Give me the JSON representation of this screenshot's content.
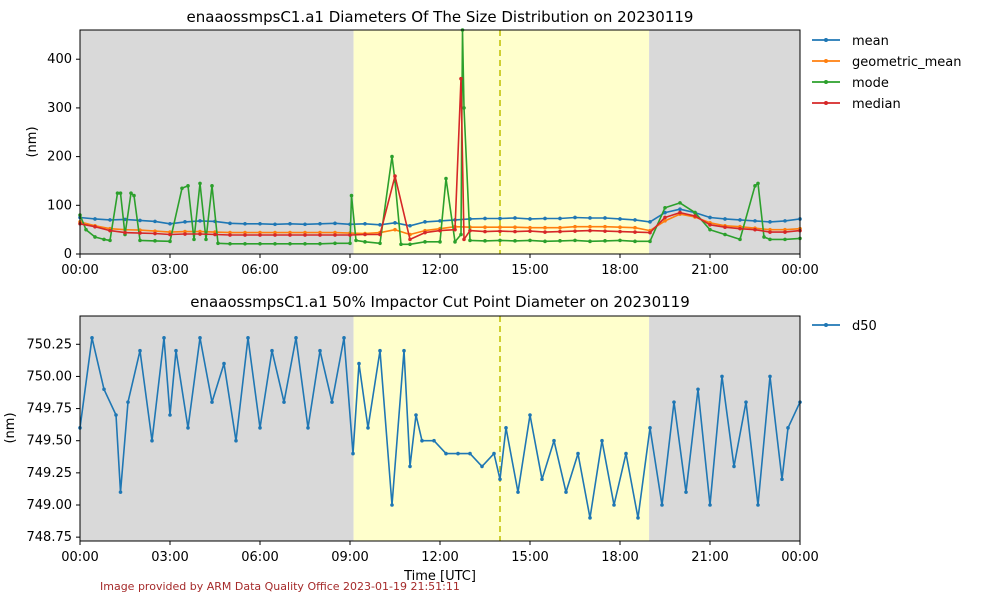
{
  "chart_data": [
    {
      "type": "line",
      "title": "enaaossmpsC1.a1 Diameters Of The Size Distribution on 20230119",
      "xlabel": "",
      "ylabel": "(nm)",
      "xticks": [
        "00:00",
        "03:00",
        "06:00",
        "09:00",
        "12:00",
        "15:00",
        "18:00",
        "21:00",
        "00:00"
      ],
      "yticks": [
        0,
        100,
        200,
        300,
        400
      ],
      "xlim_hours": [
        0,
        24
      ],
      "ylim": [
        0,
        460
      ],
      "legend_position": "outside-right",
      "shaded_regions": [
        {
          "start_hour": 0,
          "end_hour": 9.12,
          "color": "#d9d9d9"
        },
        {
          "start_hour": 9.12,
          "end_hour": 18.97,
          "color": "#ffffcc"
        },
        {
          "start_hour": 18.97,
          "end_hour": 24,
          "color": "#d9d9d9"
        }
      ],
      "marker_line_hour": 14.0,
      "marker_line_color": "#bfbf00",
      "series": [
        {
          "name": "mean",
          "color": "#1f77b4",
          "x": [
            0,
            0.5,
            1,
            1.5,
            2,
            2.5,
            3,
            3.5,
            4,
            4.5,
            5,
            5.5,
            6,
            6.5,
            7,
            7.5,
            8,
            8.5,
            9,
            9.5,
            10,
            10.5,
            11,
            11.5,
            12,
            12.5,
            13,
            13.5,
            14,
            14.5,
            15,
            15.5,
            16,
            16.5,
            17,
            17.5,
            18,
            18.5,
            19,
            19.5,
            20,
            20.5,
            21,
            21.5,
            22,
            22.5,
            23,
            23.5,
            24
          ],
          "y": [
            75,
            72,
            70,
            71,
            69,
            67,
            62,
            66,
            68,
            67,
            63,
            62,
            62,
            61,
            62,
            61,
            62,
            63,
            61,
            62,
            60,
            64,
            58,
            66,
            68,
            70,
            72,
            73,
            73,
            74,
            72,
            73,
            73,
            75,
            74,
            74,
            72,
            70,
            66,
            85,
            92,
            85,
            75,
            72,
            70,
            68,
            66,
            68,
            72
          ]
        },
        {
          "name": "geometric_mean",
          "color": "#ff7f0e",
          "x": [
            0,
            0.5,
            1,
            1.5,
            2,
            2.5,
            3,
            3.5,
            4,
            4.5,
            5,
            5.5,
            6,
            6.5,
            7,
            7.5,
            8,
            8.5,
            9,
            9.5,
            10,
            10.5,
            11,
            11.5,
            12,
            12.5,
            13,
            13.5,
            14,
            14.5,
            15,
            15.5,
            16,
            16.5,
            17,
            17.5,
            18,
            18.5,
            19,
            19.5,
            20,
            20.5,
            21,
            21.5,
            22,
            22.5,
            23,
            23.5,
            24
          ],
          "y": [
            66,
            58,
            52,
            50,
            49,
            47,
            45,
            46,
            46,
            45,
            44,
            44,
            44,
            44,
            44,
            44,
            44,
            44,
            43,
            42,
            44,
            50,
            40,
            48,
            52,
            56,
            55,
            55,
            55,
            55,
            54,
            54,
            54,
            56,
            56,
            56,
            55,
            54,
            48,
            68,
            82,
            76,
            64,
            58,
            56,
            53,
            50,
            50,
            52
          ]
        },
        {
          "name": "mode",
          "color": "#2ca02c",
          "x": [
            0,
            0.2,
            0.5,
            0.8,
            1,
            1.25,
            1.35,
            1.5,
            1.7,
            1.8,
            2,
            2.5,
            3,
            3.4,
            3.6,
            3.8,
            4,
            4.2,
            4.4,
            4.6,
            5,
            5.5,
            6,
            6.5,
            7,
            7.5,
            8,
            8.5,
            9,
            9.05,
            9.2,
            9.5,
            10,
            10.4,
            10.5,
            10.7,
            11,
            11.5,
            12,
            12.2,
            12.5,
            12.7,
            12.75,
            12.8,
            13,
            13.5,
            14,
            14.5,
            15,
            15.5,
            16,
            16.5,
            17,
            17.5,
            18,
            18.5,
            19,
            19.5,
            20,
            20.5,
            21,
            21.5,
            22,
            22.5,
            22.6,
            22.8,
            23,
            23.5,
            24
          ],
          "y": [
            80,
            50,
            35,
            30,
            28,
            125,
            125,
            40,
            125,
            120,
            28,
            27,
            26,
            135,
            140,
            30,
            145,
            30,
            140,
            22,
            21,
            21,
            21,
            21,
            21,
            21,
            21,
            22,
            22,
            120,
            28,
            25,
            22,
            200,
            150,
            20,
            20,
            25,
            25,
            155,
            25,
            40,
            460,
            300,
            28,
            27,
            28,
            27,
            28,
            26,
            27,
            28,
            26,
            27,
            28,
            26,
            26,
            95,
            105,
            85,
            50,
            40,
            30,
            140,
            145,
            35,
            30,
            30,
            32
          ]
        },
        {
          "name": "median",
          "color": "#d62728",
          "x": [
            0,
            0.5,
            1,
            1.5,
            2,
            2.5,
            3,
            3.5,
            4,
            4.5,
            5,
            5.5,
            6,
            6.5,
            7,
            7.5,
            8,
            8.5,
            9,
            9.5,
            10,
            10.5,
            11,
            11.5,
            12,
            12.5,
            12.7,
            12.8,
            13,
            13.5,
            14,
            14.5,
            15,
            15.5,
            16,
            16.5,
            17,
            17.5,
            18,
            18.5,
            19,
            19.5,
            20,
            20.5,
            21,
            21.5,
            22,
            22.5,
            23,
            23.5,
            24
          ],
          "y": [
            62,
            56,
            48,
            44,
            43,
            42,
            40,
            41,
            41,
            40,
            39,
            39,
            39,
            39,
            39,
            39,
            39,
            39,
            39,
            40,
            40,
            160,
            30,
            44,
            48,
            50,
            360,
            30,
            48,
            46,
            47,
            46,
            47,
            45,
            46,
            47,
            48,
            47,
            46,
            45,
            44,
            75,
            85,
            78,
            60,
            55,
            52,
            50,
            45,
            45,
            48
          ]
        }
      ]
    },
    {
      "type": "line",
      "title": "enaaossmpsC1.a1 50% Impactor Cut Point Diameter on 20230119",
      "xlabel": "Time [UTC]",
      "ylabel": "(nm)",
      "xticks": [
        "00:00",
        "03:00",
        "06:00",
        "09:00",
        "12:00",
        "15:00",
        "18:00",
        "21:00",
        "00:00"
      ],
      "yticks": [
        "748.75",
        "749.00",
        "749.25",
        "749.50",
        "749.75",
        "750.00",
        "750.25"
      ],
      "xlim_hours": [
        0,
        24
      ],
      "ylim": [
        748.72,
        750.47
      ],
      "legend_position": "outside-right",
      "shaded_regions": [
        {
          "start_hour": 0,
          "end_hour": 9.12,
          "color": "#d9d9d9"
        },
        {
          "start_hour": 9.12,
          "end_hour": 18.97,
          "color": "#ffffcc"
        },
        {
          "start_hour": 18.97,
          "end_hour": 24,
          "color": "#d9d9d9"
        }
      ],
      "marker_line_hour": 14.0,
      "marker_line_color": "#bfbf00",
      "series": [
        {
          "name": "d50",
          "color": "#1f77b4",
          "x": [
            0,
            0.4,
            0.8,
            1.2,
            1.35,
            1.6,
            2,
            2.4,
            2.8,
            3.0,
            3.2,
            3.6,
            4,
            4.4,
            4.8,
            5.2,
            5.6,
            6,
            6.4,
            6.8,
            7.2,
            7.6,
            8,
            8.4,
            8.8,
            9.1,
            9.3,
            9.6,
            10,
            10.4,
            10.8,
            11,
            11.2,
            11.4,
            11.8,
            12.2,
            12.6,
            13,
            13.4,
            13.8,
            14,
            14.2,
            14.6,
            15,
            15.4,
            15.8,
            16.2,
            16.6,
            17,
            17.4,
            17.8,
            18.2,
            18.6,
            19,
            19.4,
            19.8,
            20.2,
            20.6,
            21,
            21.4,
            21.8,
            22.2,
            22.6,
            23,
            23.4,
            23.6,
            24
          ],
          "y": [
            749.6,
            750.3,
            749.9,
            749.7,
            749.1,
            749.8,
            750.2,
            749.5,
            750.3,
            749.7,
            750.2,
            749.6,
            750.3,
            749.8,
            750.1,
            749.5,
            750.3,
            749.6,
            750.2,
            749.8,
            750.3,
            749.6,
            750.2,
            749.8,
            750.3,
            749.4,
            750.1,
            749.6,
            750.2,
            749.0,
            750.2,
            749.3,
            749.7,
            749.5,
            749.5,
            749.4,
            749.4,
            749.4,
            749.3,
            749.4,
            749.2,
            749.6,
            749.1,
            749.7,
            749.2,
            749.5,
            749.1,
            749.4,
            748.9,
            749.5,
            749.0,
            749.4,
            748.9,
            749.6,
            749.0,
            749.8,
            749.1,
            749.9,
            749.0,
            750.0,
            749.3,
            749.8,
            749.0,
            750.0,
            749.2,
            749.6,
            749.8
          ]
        }
      ]
    }
  ],
  "credit_text": "Image provided by ARM Data Quality Office 2023-01-19 21:51:11"
}
